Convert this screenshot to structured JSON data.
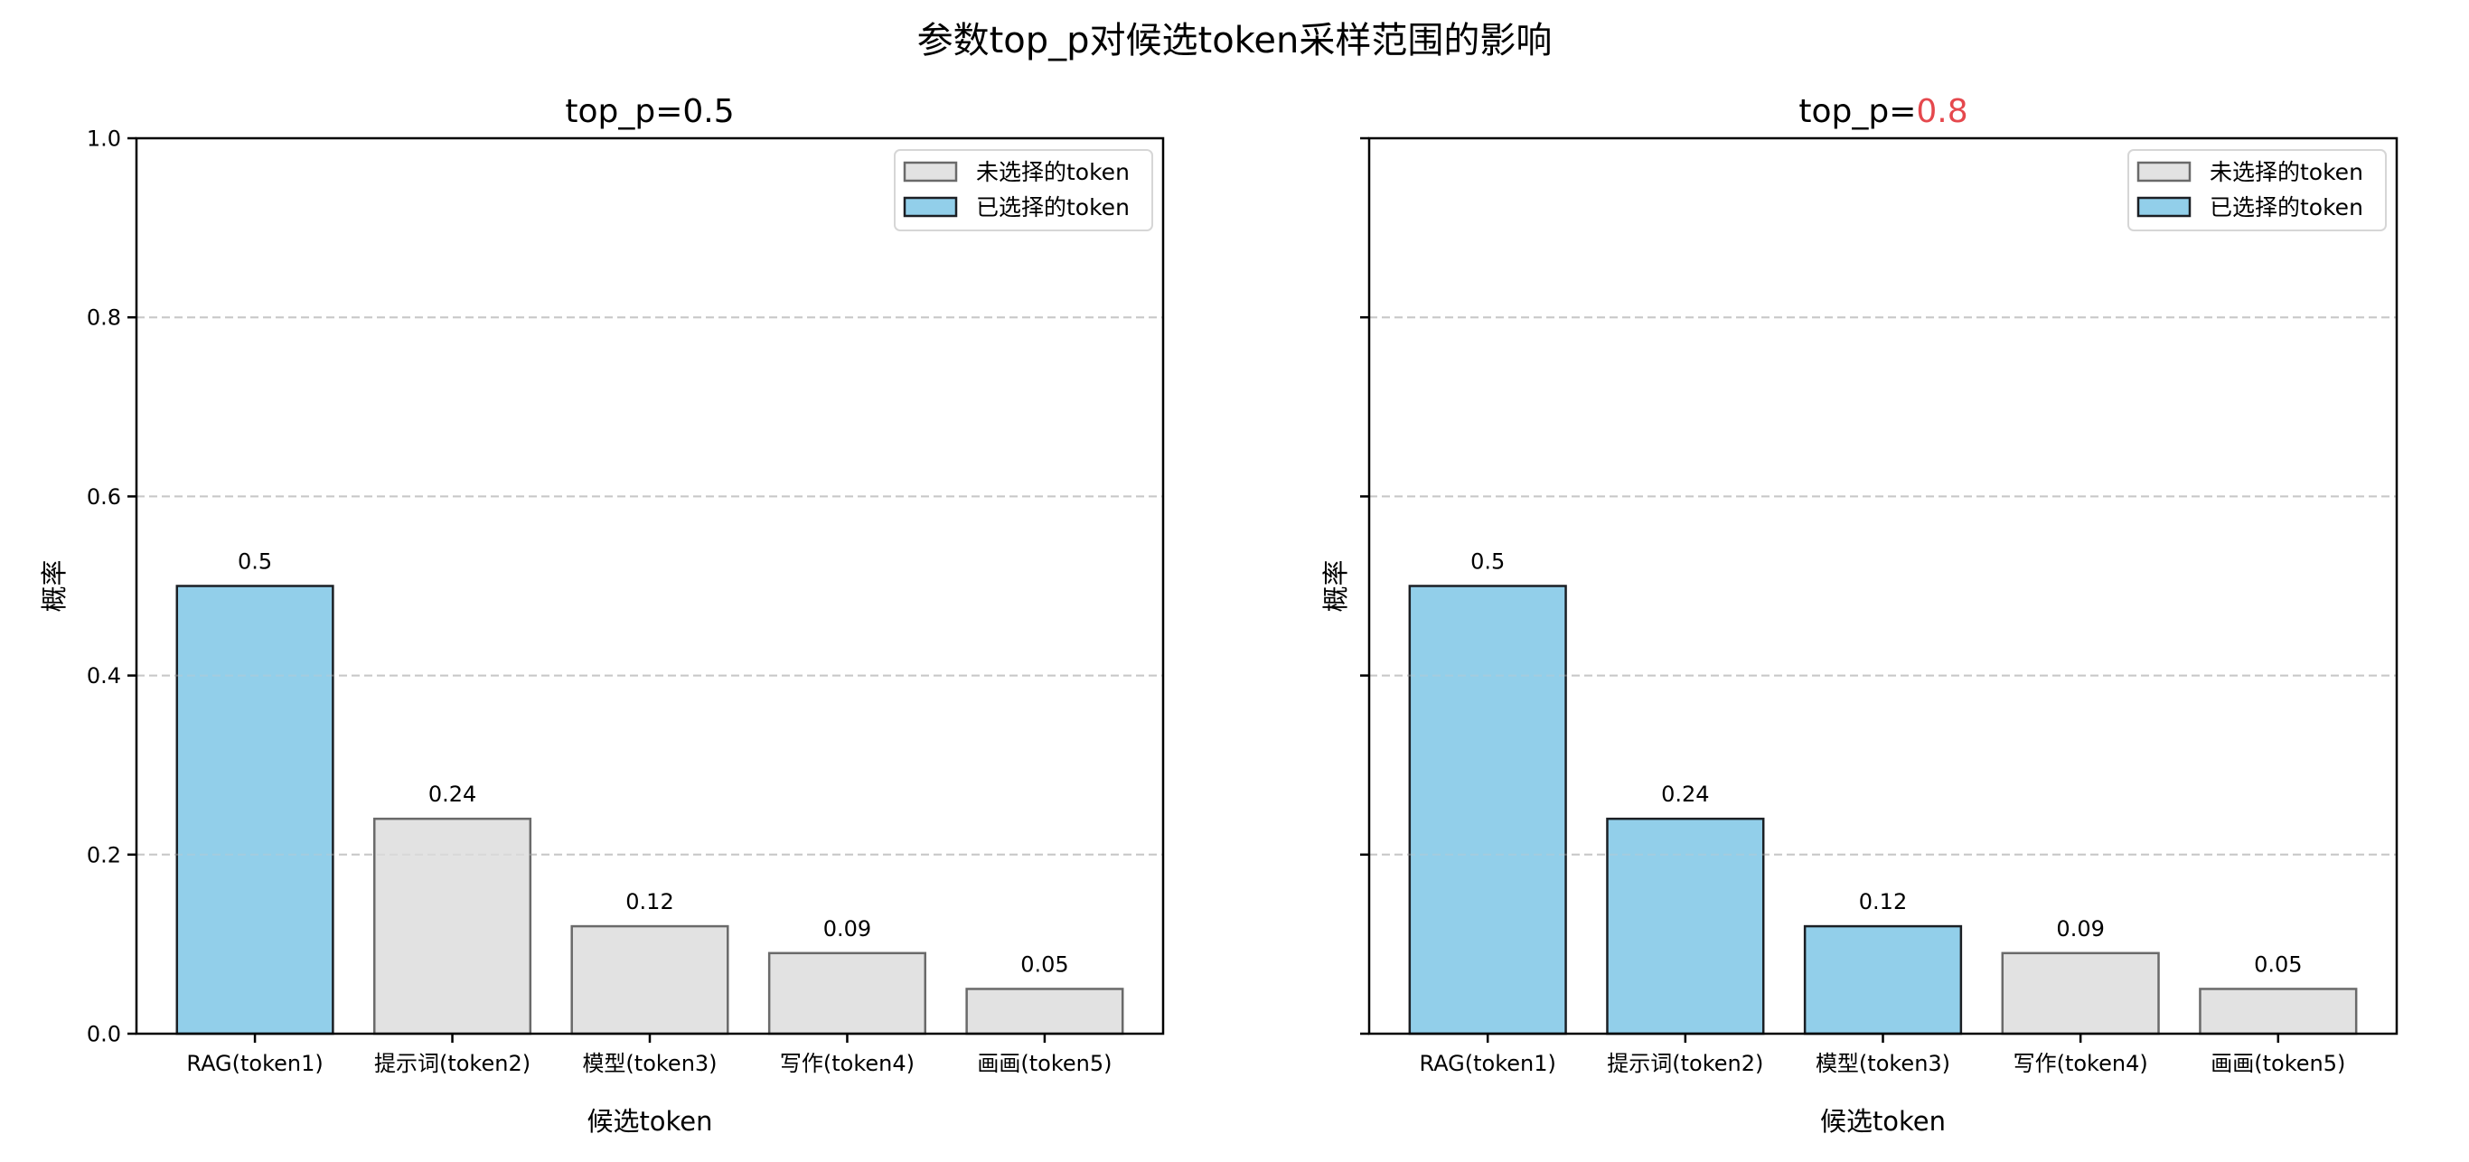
{
  "figure": {
    "suptitle": "参数top_p对候选token采样范围的影响"
  },
  "colors": {
    "selected_fill": "#92cfea",
    "selected_edge": "#1b1f24",
    "unselected_fill": "#e2e2e2",
    "unselected_edge": "#6a6a6a",
    "grid": "#c8c8c8",
    "highlight_text": "#e5484d"
  },
  "legend": {
    "unselected": "未选择的token",
    "selected": "已选择的token"
  },
  "chart_data": [
    {
      "type": "bar",
      "title": "top_p=0.5",
      "title_prefix": "top_p=",
      "title_value": "0.5",
      "title_value_highlight": false,
      "xlabel": "候选token",
      "ylabel": "概率",
      "ylim": [
        0,
        1.0
      ],
      "yticks": [
        "0.0",
        "0.2",
        "0.4",
        "0.6",
        "0.8",
        "1.0"
      ],
      "grid": "y, dashed",
      "legend_position": "upper right",
      "categories": [
        "RAG(token1)",
        "提示词(token2)",
        "模型(token3)",
        "写作(token4)",
        "画画(token5)"
      ],
      "values": [
        0.5,
        0.24,
        0.12,
        0.09,
        0.05
      ],
      "value_labels": [
        "0.5",
        "0.24",
        "0.12",
        "0.09",
        "0.05"
      ],
      "selected": [
        true,
        false,
        false,
        false,
        false
      ]
    },
    {
      "type": "bar",
      "title": "top_p=0.8",
      "title_prefix": "top_p=",
      "title_value": "0.8",
      "title_value_highlight": true,
      "xlabel": "候选token",
      "ylabel": "概率",
      "ylim": [
        0,
        1.0
      ],
      "yticks": [
        "0.0",
        "0.2",
        "0.4",
        "0.6",
        "0.8",
        "1.0"
      ],
      "grid": "y, dashed",
      "legend_position": "upper right",
      "categories": [
        "RAG(token1)",
        "提示词(token2)",
        "模型(token3)",
        "写作(token4)",
        "画画(token5)"
      ],
      "values": [
        0.5,
        0.24,
        0.12,
        0.09,
        0.05
      ],
      "value_labels": [
        "0.5",
        "0.24",
        "0.12",
        "0.09",
        "0.05"
      ],
      "selected": [
        true,
        true,
        true,
        false,
        false
      ]
    }
  ]
}
